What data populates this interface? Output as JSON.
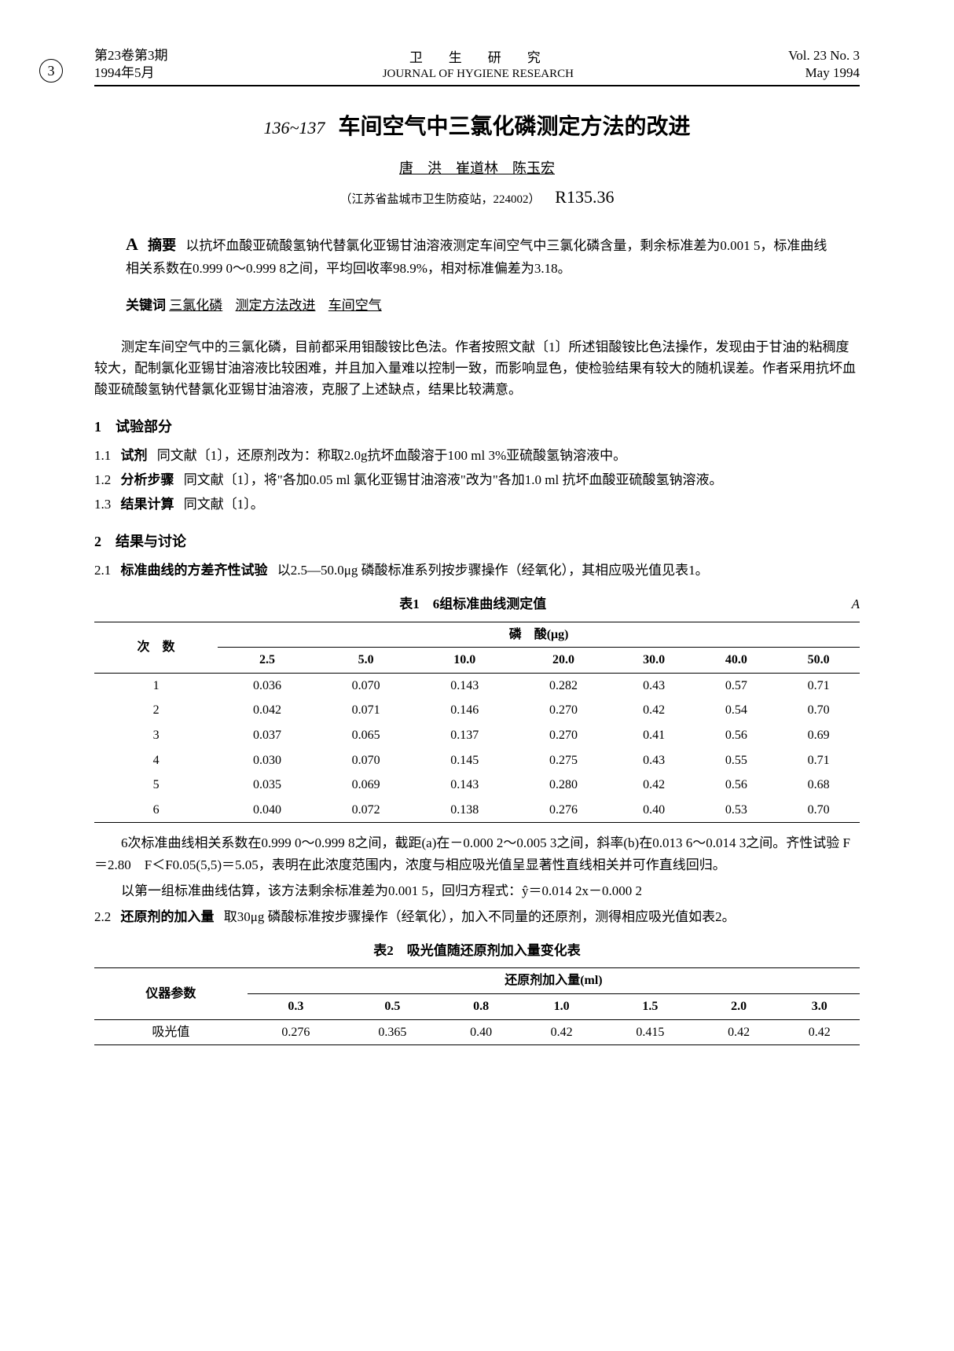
{
  "header": {
    "left_line1": "第23卷第3期",
    "left_line2": "1994年5月",
    "center_cn": "卫　生　研　究",
    "center_en": "JOURNAL OF HYGIENE RESEARCH",
    "right_line1": "Vol. 23 No. 3",
    "right_line2": "May 1994",
    "page_circle": "3"
  },
  "title": {
    "prefix": "136~137",
    "main": "车间空气中三氯化磷测定方法的改进"
  },
  "authors": "唐　洪　崔道林　陈玉宏",
  "affil": "（江苏省盐城市卫生防疫站，224002）",
  "class_code": "R135.36",
  "abstract_label_A": "A",
  "abstract_label": "摘要",
  "abstract_text": "以抗坏血酸亚硫酸氢钠代替氯化亚锡甘油溶液测定车间空气中三氯化磷含量，剩余标准差为0.001 5，标准曲线相关系数在0.999 0～0.999 8之间，平均回收率98.9%，相对标准偏差为3.18。",
  "keywords_label": "关键词",
  "keywords": [
    "三氯化磷",
    "测定方法改进",
    "车间空气"
  ],
  "intro_para": "测定车间空气中的三氯化磷，目前都采用钼酸铵比色法。作者按照文献〔1〕所述钼酸铵比色法操作，发现由于甘油的粘稠度较大，配制氯化亚锡甘油溶液比较困难，并且加入量难以控制一致，而影响显色，使检验结果有较大的随机误差。作者采用抗坏血酸亚硫酸氢钠代替氯化亚锡甘油溶液，克服了上述缺点，结果比较满意。",
  "s1": {
    "head": "1　试验部分",
    "s11_num": "1.1",
    "s11_label": "试剂",
    "s11_text": "同文献〔1〕，还原剂改为：称取2.0g抗坏血酸溶于100 ml 3%亚硫酸氢钠溶液中。",
    "s12_num": "1.2",
    "s12_label": "分析步骤",
    "s12_text": "同文献〔1〕，将\"各加0.05 ml 氯化亚锡甘油溶液\"改为\"各加1.0 ml 抗坏血酸亚硫酸氢钠溶液。",
    "s13_num": "1.3",
    "s13_label": "结果计算",
    "s13_text": "同文献〔1〕。"
  },
  "s2": {
    "head": "2　结果与讨论",
    "s21_num": "2.1",
    "s21_label": "标准曲线的方差齐性试验",
    "s21_text": "以2.5—50.0μg 磷酸标准系列按步骤操作（经氧化），其相应吸光值见表1。"
  },
  "table1": {
    "caption": "表1　6组标准曲线测定值",
    "side_mark": "A",
    "rowhead": "次　数",
    "spanhead": "磷　酸(μg)",
    "cols": [
      "2.5",
      "5.0",
      "10.0",
      "20.0",
      "30.0",
      "40.0",
      "50.0"
    ],
    "rows": [
      [
        "1",
        "0.036",
        "0.070",
        "0.143",
        "0.282",
        "0.43",
        "0.57",
        "0.71"
      ],
      [
        "2",
        "0.042",
        "0.071",
        "0.146",
        "0.270",
        "0.42",
        "0.54",
        "0.70"
      ],
      [
        "3",
        "0.037",
        "0.065",
        "0.137",
        "0.270",
        "0.41",
        "0.56",
        "0.69"
      ],
      [
        "4",
        "0.030",
        "0.070",
        "0.145",
        "0.275",
        "0.43",
        "0.55",
        "0.71"
      ],
      [
        "5",
        "0.035",
        "0.069",
        "0.143",
        "0.280",
        "0.42",
        "0.56",
        "0.68"
      ],
      [
        "6",
        "0.040",
        "0.072",
        "0.138",
        "0.276",
        "0.40",
        "0.53",
        "0.70"
      ]
    ]
  },
  "para_after_t1_1": "6次标准曲线相关系数在0.999 0～0.999 8之间，截距(a)在－0.000 2～0.005 3之间，斜率(b)在0.013 6～0.014 3之间。齐性试验 F＝2.80　F＜F0.05(5,5)＝5.05，表明在此浓度范围内，浓度与相应吸光值呈显著性直线相关并可作直线回归。",
  "para_after_t1_2": "以第一组标准曲线估算，该方法剩余标准差为0.001 5，回归方程式：ŷ＝0.014 2x－0.000 2",
  "s22_num": "2.2",
  "s22_label": "还原剂的加入量",
  "s22_text": "取30μg 磷酸标准按步骤操作（经氧化），加入不同量的还原剂，测得相应吸光值如表2。",
  "table2": {
    "caption": "表2　吸光值随还原剂加入量变化表",
    "rowhead": "仪器参数",
    "spanhead": "还原剂加入量(ml)",
    "row_label": "吸光值",
    "cols": [
      "0.3",
      "0.5",
      "0.8",
      "1.0",
      "1.5",
      "2.0",
      "3.0"
    ],
    "vals": [
      "0.276",
      "0.365",
      "0.40",
      "0.42",
      "0.415",
      "0.42",
      "0.42"
    ]
  },
  "colors": {
    "text": "#000000",
    "background": "#ffffff",
    "rule": "#000000"
  },
  "fonts": {
    "body_pt": 18,
    "title_pt": 28,
    "table_pt": 16
  }
}
